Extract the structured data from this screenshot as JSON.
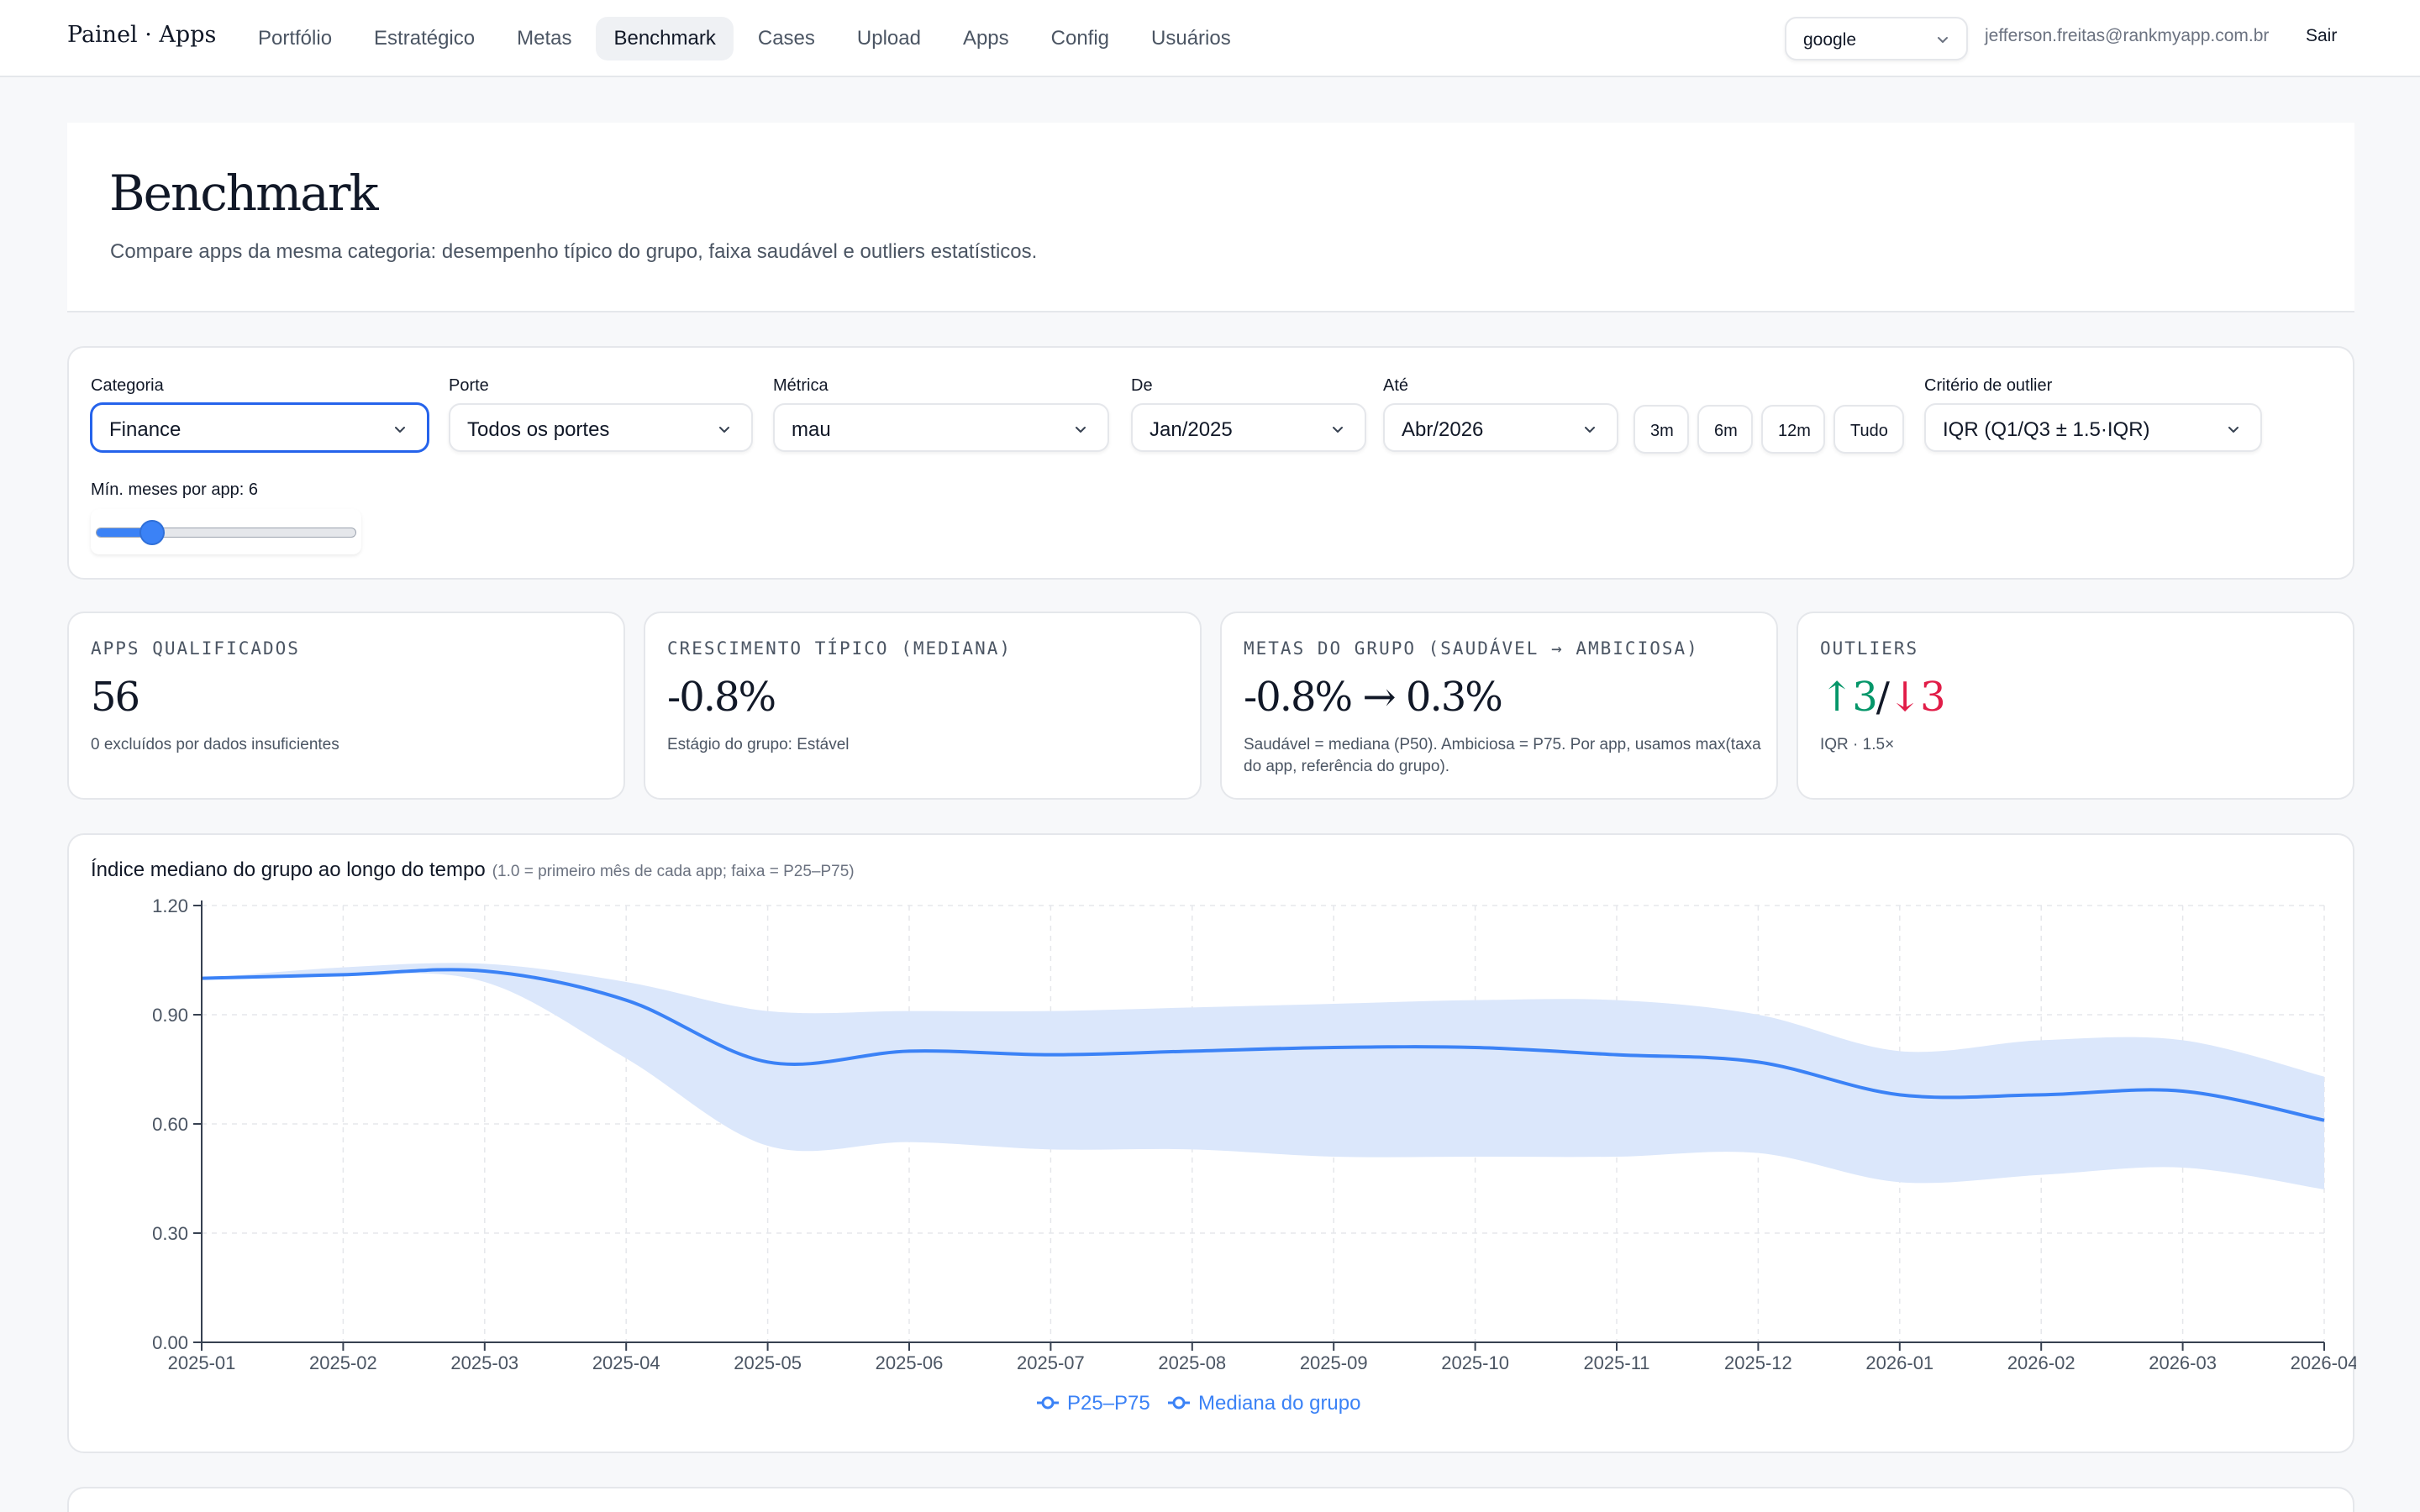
{
  "brand": "Painel · Apps",
  "nav": [
    {
      "label": "Portfólio",
      "active": false
    },
    {
      "label": "Estratégico",
      "active": false
    },
    {
      "label": "Metas",
      "active": false
    },
    {
      "label": "Benchmark",
      "active": true
    },
    {
      "label": "Cases",
      "active": false
    },
    {
      "label": "Upload",
      "active": false
    },
    {
      "label": "Apps",
      "active": false
    },
    {
      "label": "Config",
      "active": false
    },
    {
      "label": "Usuários",
      "active": false
    }
  ],
  "header": {
    "app_select": "google",
    "user_email": "jefferson.freitas@rankmyapp.com.br",
    "logout": "Sair"
  },
  "hero": {
    "title": "Benchmark",
    "subtitle": "Compare apps da mesma categoria: desempenho típico do grupo, faixa saudável e outliers estatísticos."
  },
  "filters": {
    "categoria": {
      "label": "Categoria",
      "value": "Finance"
    },
    "porte": {
      "label": "Porte",
      "value": "Todos os portes"
    },
    "metrica": {
      "label": "Métrica",
      "value": "mau"
    },
    "de": {
      "label": "De",
      "value": "Jan/2025"
    },
    "ate": {
      "label": "Até",
      "value": "Abr/2026"
    },
    "ranges": [
      "3m",
      "6m",
      "12m",
      "Tudo"
    ],
    "criterio": {
      "label": "Critério de outlier",
      "value": "IQR (Q1/Q3 ± 1.5·IQR)"
    },
    "min_meses": {
      "label": "Mín. meses por app: 6",
      "value": 6,
      "min": 1,
      "max": 24
    }
  },
  "stats": {
    "qualificados": {
      "label": "APPS QUALIFICADOS",
      "value": "56",
      "sub": "0 excluídos por dados insuficientes"
    },
    "crescimento": {
      "label": "CRESCIMENTO TÍPICO (MEDIANA)",
      "value": "-0.8%",
      "sub": "Estágio do grupo: Estável"
    },
    "metas": {
      "label": "METAS DO GRUPO (SAUDÁVEL → AMBICIOSA)",
      "value": "-0.8% → 0.3%",
      "sub": "Saudável = mediana (P50). Ambiciosa = P75. Por app, usamos max(taxa do app, referência do grupo)."
    },
    "outliers": {
      "label": "OUTLIERS",
      "up": "↑3",
      "sep": "/",
      "down": "↓3",
      "sub": "IQR · 1.5×"
    }
  },
  "colors": {
    "accent": "#3b82f6",
    "band": "#dbe7fb",
    "up": "#059669",
    "down": "#e11d48"
  },
  "chart_data": {
    "type": "line",
    "title": "Índice mediano do grupo ao longo do tempo",
    "note": "(1.0 = primeiro mês de cada app; faixa = P25–P75)",
    "x": [
      "2025-01",
      "2025-02",
      "2025-03",
      "2025-04",
      "2025-05",
      "2025-06",
      "2025-07",
      "2025-08",
      "2025-09",
      "2025-10",
      "2025-11",
      "2025-12",
      "2026-01",
      "2026-02",
      "2026-03",
      "2026-04"
    ],
    "ylim": [
      0,
      1.2
    ],
    "yticks": [
      "0.00",
      "0.30",
      "0.60",
      "0.90",
      "1.20"
    ],
    "grid": true,
    "legend": "bottom-center",
    "series": [
      {
        "name": "P25–P75",
        "p25": [
          1.0,
          1.01,
          0.99,
          0.78,
          0.54,
          0.55,
          0.53,
          0.53,
          0.51,
          0.51,
          0.51,
          0.52,
          0.44,
          0.46,
          0.48,
          0.42
        ],
        "p75": [
          1.0,
          1.03,
          1.04,
          0.99,
          0.91,
          0.91,
          0.91,
          0.92,
          0.93,
          0.94,
          0.94,
          0.9,
          0.8,
          0.83,
          0.83,
          0.73
        ]
      },
      {
        "name": "Mediana do grupo",
        "values": [
          1.0,
          1.01,
          1.02,
          0.94,
          0.77,
          0.8,
          0.79,
          0.8,
          0.81,
          0.81,
          0.79,
          0.77,
          0.68,
          0.68,
          0.69,
          0.61
        ]
      }
    ]
  }
}
